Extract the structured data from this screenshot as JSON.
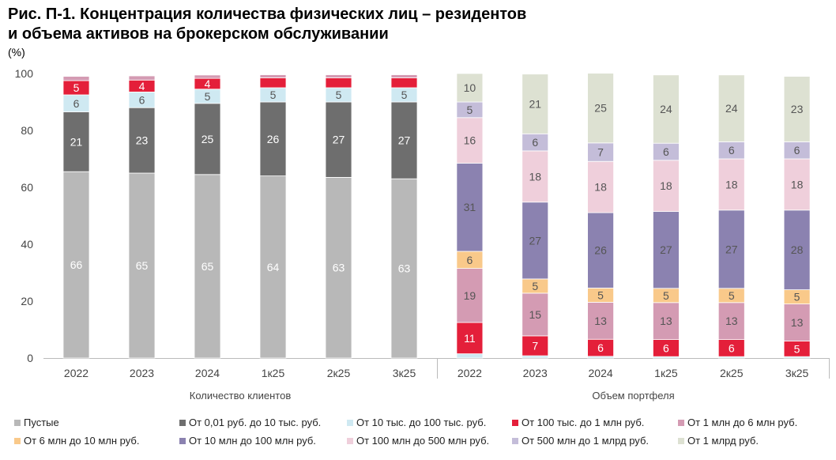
{
  "title": {
    "line1": "Рис. П-1. Концентрация количества физических лиц – резидентов",
    "line2": "и объема активов на брокерском обслуживании"
  },
  "unit": "(%)",
  "legend": [
    {
      "label": "Пустые",
      "color": "#b8b8b8"
    },
    {
      "label": "От 0,01 руб. до 10 тыс. руб.",
      "color": "#6e6e6e"
    },
    {
      "label": "От 10 тыс. до 100 тыс. руб.",
      "color": "#cfe9f2"
    },
    {
      "label": "От 100 тыс. до 1 млн руб.",
      "color": "#e41f3a"
    },
    {
      "label": "От 1 млн до 6 млн руб.",
      "color": "#d49bb3"
    },
    {
      "label": "От 6 млн до 10 млн руб.",
      "color": "#f9c98a"
    },
    {
      "label": "От 10 млн до 100 млн руб.",
      "color": "#8b82b0"
    },
    {
      "label": "От 100 млн до 500 млн руб.",
      "color": "#efcfdb"
    },
    {
      "label": "От 500 млн до 1 млрд руб.",
      "color": "#c4bdd9"
    },
    {
      "label": "От 1 млрд руб.",
      "color": "#dde1d2"
    }
  ],
  "chart_data": [
    {
      "type": "bar",
      "stacked": true,
      "xlabel": "Количество клиентов",
      "ylim": [
        0,
        100
      ],
      "yticks": [
        0,
        20,
        40,
        60,
        80,
        100
      ],
      "categories": [
        "2022",
        "2023",
        "2024",
        "1к25",
        "2к25",
        "3к25"
      ],
      "series": [
        {
          "name": "Пустые",
          "values": [
            65.5,
            65,
            64.5,
            64,
            63.5,
            63
          ],
          "labels": [
            "66",
            "65",
            "65",
            "64",
            "63",
            "63"
          ]
        },
        {
          "name": "От 0,01 руб. до 10 тыс. руб.",
          "values": [
            21,
            23,
            25,
            26,
            26.5,
            27
          ],
          "labels": [
            "21",
            "23",
            "25",
            "26",
            "27",
            "27"
          ]
        },
        {
          "name": "От 10 тыс. до 100 тыс. руб.",
          "values": [
            6,
            5.5,
            5,
            5,
            5,
            5
          ],
          "labels": [
            "6",
            "6",
            "5",
            "5",
            "5",
            "5"
          ]
        },
        {
          "name": "От 100 тыс. до 1 млн руб.",
          "values": [
            5,
            4.2,
            3.8,
            3.5,
            3.5,
            3.5
          ],
          "labels": [
            "5",
            "4",
            "4",
            "",
            "",
            ""
          ]
        },
        {
          "name": "От 1 млн до 6 млн руб.",
          "values": [
            1.5,
            1.5,
            1.2,
            1.1,
            1.1,
            1.1
          ],
          "labels": [
            "",
            "",
            "",
            "",
            "",
            ""
          ]
        },
        {
          "name": "От 6 млн до 10 млн руб.",
          "values": [
            0.2,
            0.2,
            0.2,
            0.2,
            0.2,
            0.2
          ],
          "labels": [
            "",
            "",
            "",
            "",
            "",
            ""
          ]
        }
      ]
    },
    {
      "type": "bar",
      "stacked": true,
      "xlabel": "Объем портфеля",
      "ylim": [
        0,
        100
      ],
      "categories": [
        "2022",
        "2023",
        "2024",
        "1к25",
        "2к25",
        "3к25"
      ],
      "series": [
        {
          "name": "Пустые",
          "values": [
            0,
            0,
            0,
            0,
            0,
            0
          ],
          "labels": [
            "",
            "",
            "",
            "",
            "",
            ""
          ]
        },
        {
          "name": "От 0,01 руб. до 10 тыс. руб.",
          "values": [
            0,
            0,
            0,
            0,
            0,
            0
          ],
          "labels": [
            "",
            "",
            "",
            "",
            "",
            ""
          ]
        },
        {
          "name": "От 10 тыс. до 100 тыс. руб.",
          "values": [
            1.5,
            0.8,
            0.6,
            0.5,
            0.5,
            0.5
          ],
          "labels": [
            "",
            "",
            "",
            "",
            "",
            ""
          ]
        },
        {
          "name": "От 100 тыс. до 1 млн руб.",
          "values": [
            11,
            7,
            6,
            6,
            6,
            5.5
          ],
          "labels": [
            "11",
            "7",
            "6",
            "6",
            "6",
            "5"
          ]
        },
        {
          "name": "От 1 млн до 6 млн руб.",
          "values": [
            19,
            15,
            13,
            13,
            13,
            13
          ],
          "labels": [
            "19",
            "15",
            "13",
            "13",
            "13",
            "13"
          ]
        },
        {
          "name": "От 6 млн до 10 млн руб.",
          "values": [
            6,
            5,
            5,
            5,
            5,
            5
          ],
          "labels": [
            "6",
            "5",
            "5",
            "5",
            "5",
            "5"
          ]
        },
        {
          "name": "От 10 млн до 100 млн руб.",
          "values": [
            31,
            27,
            26.5,
            27,
            27.5,
            28
          ],
          "labels": [
            "31",
            "27",
            "26",
            "27",
            "27",
            "28"
          ]
        },
        {
          "name": "От 100 млн до 500 млн руб.",
          "values": [
            16,
            18,
            18,
            18,
            18,
            18
          ],
          "labels": [
            "16",
            "18",
            "18",
            "18",
            "18",
            "18"
          ]
        },
        {
          "name": "От 500 млн до 1 млрд руб.",
          "values": [
            5.5,
            6,
            6.5,
            6,
            6,
            6
          ],
          "labels": [
            "5",
            "6",
            "7",
            "6",
            "6",
            "6"
          ]
        },
        {
          "name": "От 1 млрд руб.",
          "values": [
            10,
            21,
            24.5,
            24,
            23.5,
            23
          ],
          "labels": [
            "10",
            "21",
            "25",
            "24",
            "24",
            "23"
          ]
        }
      ]
    }
  ]
}
